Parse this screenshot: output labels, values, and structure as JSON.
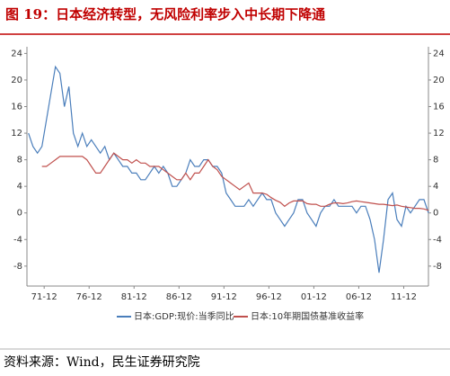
{
  "title": "图 19：日本经济转型，无风险利率步入中长期下降通",
  "source": "资料来源：Wind，民生证券研究院",
  "chart_data": {
    "type": "line",
    "x": [
      "1970-03",
      "1970-09",
      "1971-03",
      "1971-09",
      "1972-03",
      "1972-09",
      "1973-03",
      "1973-09",
      "1974-03",
      "1974-09",
      "1975-03",
      "1975-09",
      "1976-03",
      "1976-09",
      "1977-03",
      "1977-09",
      "1978-03",
      "1978-09",
      "1979-03",
      "1979-09",
      "1980-03",
      "1980-09",
      "1981-03",
      "1981-09",
      "1982-03",
      "1982-09",
      "1983-03",
      "1983-09",
      "1984-03",
      "1984-09",
      "1985-03",
      "1985-09",
      "1986-03",
      "1986-09",
      "1987-03",
      "1987-09",
      "1988-03",
      "1988-09",
      "1989-03",
      "1989-09",
      "1990-03",
      "1990-09",
      "1991-03",
      "1991-09",
      "1992-03",
      "1992-09",
      "1993-03",
      "1993-09",
      "1994-03",
      "1994-09",
      "1995-03",
      "1995-09",
      "1996-03",
      "1996-09",
      "1997-03",
      "1997-09",
      "1998-03",
      "1998-09",
      "1999-03",
      "1999-09",
      "2000-03",
      "2000-09",
      "2001-03",
      "2001-09",
      "2002-03",
      "2002-09",
      "2003-03",
      "2003-09",
      "2004-03",
      "2004-09",
      "2005-03",
      "2005-09",
      "2006-03",
      "2006-09",
      "2007-03",
      "2007-09",
      "2008-03",
      "2008-09",
      "2009-03",
      "2009-09",
      "2010-03",
      "2010-09",
      "2011-03",
      "2011-09",
      "2012-03",
      "2012-09",
      "2013-03",
      "2013-09",
      "2014-03",
      "2014-09"
    ],
    "xlim": [
      "1970-01",
      "2014-09"
    ],
    "xticks": [
      {
        "value": "1971-12",
        "label": "71-12"
      },
      {
        "value": "1976-12",
        "label": "76-12"
      },
      {
        "value": "1981-12",
        "label": "81-12"
      },
      {
        "value": "1986-12",
        "label": "86-12"
      },
      {
        "value": "1991-12",
        "label": "91-12"
      },
      {
        "value": "1996-12",
        "label": "96-12"
      },
      {
        "value": "2001-12",
        "label": "01-12"
      },
      {
        "value": "2006-12",
        "label": "06-12"
      },
      {
        "value": "2011-12",
        "label": "11-12"
      }
    ],
    "ylim": [
      -11,
      25
    ],
    "yticks": [
      24,
      20,
      16,
      12,
      8,
      4,
      0,
      -4,
      -8
    ],
    "y2lim": [
      -11,
      25
    ],
    "y2ticks": [
      24,
      20,
      16,
      12,
      8,
      4,
      0,
      -4,
      -8
    ],
    "legend": "bottom",
    "series": [
      {
        "name": "日本:GDP:现价:当季同比",
        "color": "#4a7ebb",
        "values": [
          12,
          10,
          9,
          10,
          14,
          18,
          22,
          21,
          16,
          19,
          12,
          10,
          12,
          10,
          11,
          10,
          9,
          10,
          8,
          9,
          8,
          7,
          7,
          6,
          6,
          5,
          5,
          6,
          7,
          6,
          7,
          6,
          4,
          4,
          5,
          6,
          8,
          7,
          7,
          8,
          8,
          7,
          7,
          6,
          3,
          2,
          1,
          1,
          1,
          2,
          1,
          2,
          3,
          2,
          2,
          0,
          -1,
          -2,
          -1,
          0,
          2,
          2,
          0,
          -1,
          -2,
          0,
          1,
          1,
          2,
          1,
          1,
          1,
          1,
          0,
          1,
          1,
          -1,
          -4,
          -9,
          -4,
          2,
          3,
          -1,
          -2,
          1,
          0,
          1,
          2,
          2,
          0
        ]
      },
      {
        "name": "日本:10年期国债基准收益率",
        "color": "#c0504d",
        "axis": "y2",
        "values": [
          null,
          null,
          null,
          7,
          7,
          7.5,
          8,
          8.5,
          8.5,
          8.5,
          8.5,
          8.5,
          8.5,
          8,
          7,
          6,
          6,
          7,
          8,
          9,
          8.5,
          8,
          8,
          7.5,
          8,
          7.5,
          7.5,
          7,
          7,
          7,
          6.5,
          6,
          5.5,
          5,
          5,
          6,
          5,
          6,
          6,
          7,
          8,
          7,
          6.5,
          5.5,
          5,
          4.5,
          4,
          3.5,
          4,
          4.5,
          3,
          3,
          3,
          2.8,
          2.3,
          1.9,
          1.6,
          1,
          1.5,
          1.8,
          1.8,
          1.8,
          1.4,
          1.3,
          1.3,
          1,
          1,
          1.3,
          1.5,
          1.5,
          1.4,
          1.5,
          1.7,
          1.8,
          1.7,
          1.6,
          1.5,
          1.4,
          1.3,
          1.3,
          1.2,
          1.1,
          1.2,
          1,
          0.9,
          0.8,
          0.7,
          0.7,
          0.6,
          0.4
        ]
      }
    ]
  }
}
